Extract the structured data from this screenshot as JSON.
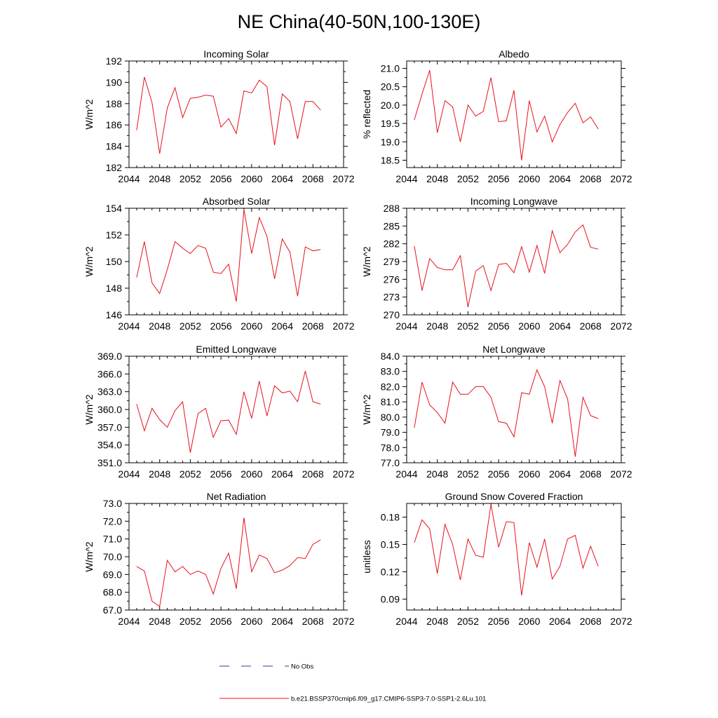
{
  "title": "NE China(40-50N,100-130E)",
  "legend": {
    "items": [
      {
        "label": "No Obs",
        "color": "#2b3b9e",
        "style": "dashed"
      },
      {
        "label": "b.e21.BSSP370cmip6.f09_g17.CMIP6-SSP3-7.0-SSP1-2.6Lu.101",
        "color": "#e8101c",
        "style": "solid"
      }
    ]
  },
  "colors": {
    "series": "#e8101c",
    "axis": "#000000"
  },
  "chart_data": [
    {
      "type": "line",
      "title": "Incoming Solar",
      "ylabel": "W/m^2",
      "xlim": [
        2044,
        2072
      ],
      "xticks": [
        2044,
        2048,
        2052,
        2056,
        2060,
        2064,
        2068,
        2072
      ],
      "ylim": [
        182,
        192
      ],
      "yticks": [
        "182",
        "184",
        "186",
        "188",
        "190",
        "192"
      ],
      "x": [
        2045,
        2046,
        2047,
        2048,
        2049,
        2050,
        2051,
        2052,
        2053,
        2054,
        2055,
        2056,
        2057,
        2058,
        2059,
        2060,
        2061,
        2062,
        2063,
        2064,
        2065,
        2066,
        2067,
        2068,
        2069
      ],
      "values": [
        185.5,
        190.5,
        188.1,
        183.3,
        187.6,
        189.5,
        186.7,
        188.5,
        188.6,
        188.8,
        188.7,
        185.8,
        186.6,
        185.2,
        189.2,
        189.0,
        190.2,
        189.6,
        184.1,
        188.9,
        188.2,
        184.7,
        188.2,
        188.2,
        187.4
      ]
    },
    {
      "type": "line",
      "title": "Albedo",
      "ylabel": "% reflected",
      "xlim": [
        2044,
        2072
      ],
      "xticks": [
        2044,
        2048,
        2052,
        2056,
        2060,
        2064,
        2068,
        2072
      ],
      "ylim": [
        18.3,
        21.2
      ],
      "yticks": [
        "18.5",
        "19.0",
        "19.5",
        "20.0",
        "20.5",
        "21.0"
      ],
      "x": [
        2045,
        2046,
        2047,
        2048,
        2049,
        2050,
        2051,
        2052,
        2053,
        2054,
        2055,
        2056,
        2057,
        2058,
        2059,
        2060,
        2061,
        2062,
        2063,
        2064,
        2065,
        2066,
        2067,
        2068,
        2069
      ],
      "values": [
        19.6,
        20.3,
        20.95,
        19.25,
        20.12,
        19.95,
        19.0,
        20.0,
        19.7,
        19.83,
        20.75,
        19.55,
        19.57,
        20.4,
        18.5,
        20.12,
        19.27,
        19.7,
        19.0,
        19.47,
        19.8,
        20.05,
        19.52,
        19.68,
        19.35
      ]
    },
    {
      "type": "line",
      "title": "Absorbed Solar",
      "ylabel": "W/m^2",
      "xlim": [
        2044,
        2072
      ],
      "xticks": [
        2044,
        2048,
        2052,
        2056,
        2060,
        2064,
        2068,
        2072
      ],
      "ylim": [
        146,
        154
      ],
      "yticks": [
        "146",
        "148",
        "150",
        "152",
        "154"
      ],
      "x": [
        2045,
        2046,
        2047,
        2048,
        2049,
        2050,
        2051,
        2052,
        2053,
        2054,
        2055,
        2056,
        2057,
        2058,
        2059,
        2060,
        2061,
        2062,
        2063,
        2064,
        2065,
        2066,
        2067,
        2068,
        2069
      ],
      "values": [
        148.8,
        151.5,
        148.4,
        147.6,
        149.4,
        151.5,
        151.0,
        150.6,
        151.2,
        151.0,
        149.2,
        149.1,
        149.8,
        147.0,
        153.9,
        150.6,
        153.3,
        151.9,
        148.7,
        151.7,
        150.7,
        147.4,
        151.1,
        150.8,
        150.9
      ]
    },
    {
      "type": "line",
      "title": "Incoming Longwave",
      "ylabel": "W/m^2",
      "xlim": [
        2044,
        2072
      ],
      "xticks": [
        2044,
        2048,
        2052,
        2056,
        2060,
        2064,
        2068,
        2072
      ],
      "ylim": [
        270,
        288
      ],
      "yticks": [
        "270",
        "273",
        "276",
        "279",
        "282",
        "285",
        "288"
      ],
      "x": [
        2045,
        2046,
        2047,
        2048,
        2049,
        2050,
        2051,
        2052,
        2053,
        2054,
        2055,
        2056,
        2057,
        2058,
        2059,
        2060,
        2061,
        2062,
        2063,
        2064,
        2065,
        2066,
        2067,
        2068,
        2069
      ],
      "values": [
        281.6,
        274.1,
        279.5,
        278.0,
        277.6,
        277.6,
        280.0,
        271.3,
        277.4,
        278.3,
        274.1,
        278.5,
        278.7,
        277.1,
        281.5,
        277.2,
        281.7,
        277.0,
        284.2,
        280.5,
        281.9,
        284.0,
        285.2,
        281.4,
        281.1
      ]
    },
    {
      "type": "line",
      "title": "Emitted Longwave",
      "ylabel": "W/m^2",
      "xlim": [
        2044,
        2072
      ],
      "xticks": [
        2044,
        2048,
        2052,
        2056,
        2060,
        2064,
        2068,
        2072
      ],
      "ylim": [
        351,
        369
      ],
      "yticks": [
        "351.0",
        "354.0",
        "357.0",
        "360.0",
        "363.0",
        "366.0",
        "369.0"
      ],
      "x": [
        2045,
        2046,
        2047,
        2048,
        2049,
        2050,
        2051,
        2052,
        2053,
        2054,
        2055,
        2056,
        2057,
        2058,
        2059,
        2060,
        2061,
        2062,
        2063,
        2064,
        2065,
        2066,
        2067,
        2068,
        2069
      ],
      "values": [
        360.9,
        356.4,
        360.2,
        358.3,
        357.0,
        359.8,
        361.3,
        352.7,
        359.3,
        360.2,
        355.3,
        358.1,
        358.2,
        355.8,
        363.0,
        358.5,
        364.8,
        358.9,
        364.0,
        362.8,
        363.1,
        361.3,
        366.5,
        361.3,
        360.9
      ]
    },
    {
      "type": "line",
      "title": "Net Longwave",
      "ylabel": "W/m^2",
      "xlim": [
        2044,
        2072
      ],
      "xticks": [
        2044,
        2048,
        2052,
        2056,
        2060,
        2064,
        2068,
        2072
      ],
      "ylim": [
        77,
        84
      ],
      "yticks": [
        "77.0",
        "78.0",
        "79.0",
        "80.0",
        "81.0",
        "82.0",
        "83.0",
        "84.0"
      ],
      "x": [
        2045,
        2046,
        2047,
        2048,
        2049,
        2050,
        2051,
        2052,
        2053,
        2054,
        2055,
        2056,
        2057,
        2058,
        2059,
        2060,
        2061,
        2062,
        2063,
        2064,
        2065,
        2066,
        2067,
        2068,
        2069
      ],
      "values": [
        79.3,
        82.3,
        80.8,
        80.3,
        79.6,
        82.3,
        81.5,
        81.5,
        82.0,
        82.0,
        81.3,
        79.7,
        79.6,
        78.7,
        81.6,
        81.5,
        83.1,
        82.0,
        79.6,
        82.4,
        81.2,
        77.4,
        81.3,
        80.1,
        79.9
      ]
    },
    {
      "type": "line",
      "title": "Net Radiation",
      "ylabel": "W/m^2",
      "xlim": [
        2044,
        2072
      ],
      "xticks": [
        2044,
        2048,
        2052,
        2056,
        2060,
        2064,
        2068,
        2072
      ],
      "ylim": [
        67,
        73
      ],
      "yticks": [
        "67.0",
        "68.0",
        "69.0",
        "70.0",
        "71.0",
        "72.0",
        "73.0"
      ],
      "x": [
        2045,
        2046,
        2047,
        2048,
        2049,
        2050,
        2051,
        2052,
        2053,
        2054,
        2055,
        2056,
        2057,
        2058,
        2059,
        2060,
        2061,
        2062,
        2063,
        2064,
        2065,
        2066,
        2067,
        2068,
        2069
      ],
      "values": [
        69.45,
        69.2,
        67.5,
        67.2,
        69.8,
        69.15,
        69.45,
        69.0,
        69.2,
        69.0,
        67.9,
        69.35,
        70.2,
        68.2,
        72.2,
        69.15,
        70.1,
        69.9,
        69.1,
        69.25,
        69.5,
        69.95,
        69.9,
        70.7,
        70.95
      ]
    },
    {
      "type": "line",
      "title": "Ground Snow Covered Fraction",
      "ylabel": "unitless",
      "xlim": [
        2044,
        2072
      ],
      "xticks": [
        2044,
        2048,
        2052,
        2056,
        2060,
        2064,
        2068,
        2072
      ],
      "ylim": [
        0.078,
        0.195
      ],
      "yticks": [
        "0.09",
        "0.12",
        "0.15",
        "0.18"
      ],
      "x": [
        2045,
        2046,
        2047,
        2048,
        2049,
        2050,
        2051,
        2052,
        2053,
        2054,
        2055,
        2056,
        2057,
        2058,
        2059,
        2060,
        2061,
        2062,
        2063,
        2064,
        2065,
        2066,
        2067,
        2068,
        2069
      ],
      "values": [
        0.152,
        0.177,
        0.167,
        0.118,
        0.172,
        0.15,
        0.111,
        0.156,
        0.138,
        0.136,
        0.194,
        0.147,
        0.175,
        0.174,
        0.094,
        0.152,
        0.125,
        0.156,
        0.112,
        0.126,
        0.156,
        0.16,
        0.124,
        0.148,
        0.126
      ]
    }
  ]
}
